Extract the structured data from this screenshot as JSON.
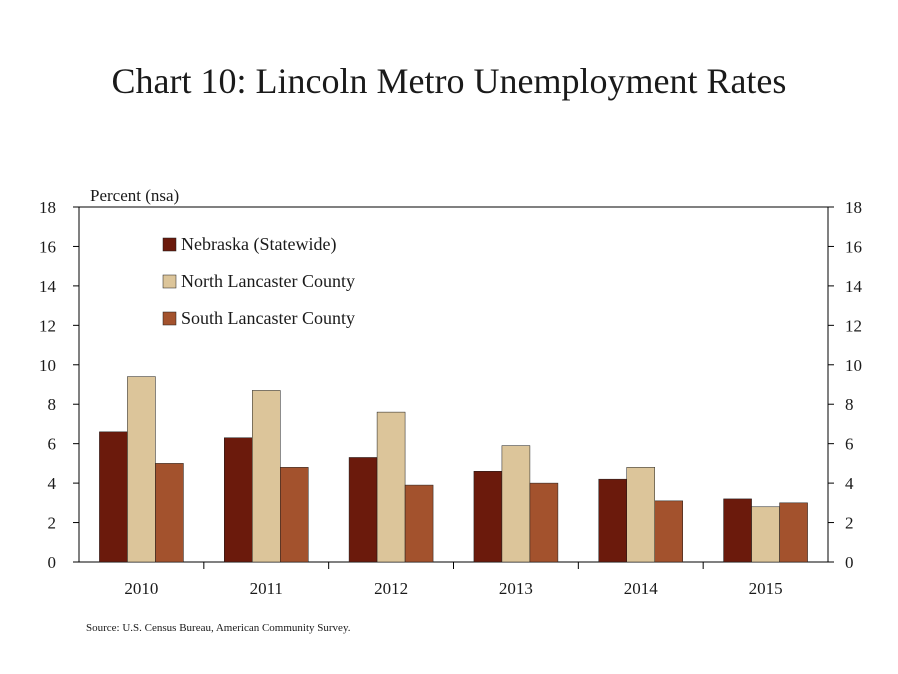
{
  "chart_data": {
    "type": "bar",
    "title": "Chart 10: Lincoln Metro Unemployment Rates",
    "ylabel": "Percent (nsa)",
    "xlabel": "",
    "categories": [
      "2010",
      "2011",
      "2012",
      "2013",
      "2014",
      "2015"
    ],
    "series": [
      {
        "name": "Nebraska (Statewide)",
        "color": "#6b1a0c",
        "values": [
          6.6,
          6.3,
          5.3,
          4.6,
          4.2,
          3.2
        ]
      },
      {
        "name": "North Lancaster County",
        "color": "#dcc59a",
        "values": [
          9.4,
          8.7,
          7.6,
          5.9,
          4.8,
          2.8
        ]
      },
      {
        "name": "South Lancaster County",
        "color": "#a3522d",
        "values": [
          5.0,
          4.8,
          3.9,
          4.0,
          3.1,
          3.0
        ]
      }
    ],
    "ylim": [
      0,
      18
    ],
    "yticks": [
      0,
      2,
      4,
      6,
      8,
      10,
      12,
      14,
      16,
      18
    ],
    "secondary_axis": true,
    "grid": false,
    "legend_position": "top-left"
  },
  "source": "Source: U.S. Census Bureau, American Community Survey."
}
